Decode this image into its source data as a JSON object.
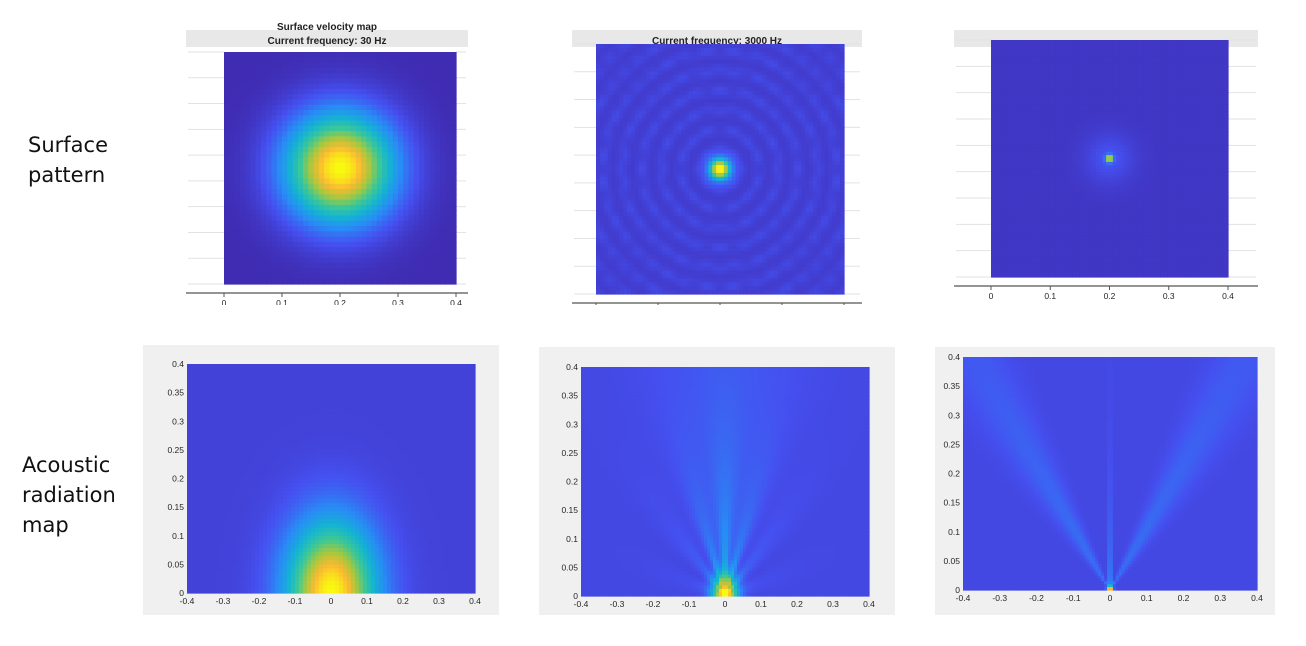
{
  "row_labels": {
    "surface": [
      "Surface",
      "pattern"
    ],
    "acoustic": [
      "Acoustic",
      "radiation",
      "map"
    ]
  },
  "chart_data": [
    {
      "type": "heatmap",
      "row": "Surface pattern",
      "title": "Surface velocity map",
      "subtitle": "Current frequency: 30 Hz",
      "x_ticks": [
        "0",
        "0.1",
        "0.2",
        "0.3",
        "0.4"
      ],
      "xlim": [
        0,
        0.4
      ],
      "pattern": "single broad maximum at center (0.2, 0.2), decaying to edges",
      "peak": {
        "x": 0.2,
        "y": 0.2
      }
    },
    {
      "type": "heatmap",
      "row": "Surface pattern",
      "title": "",
      "subtitle": "Current frequency: 3000 Hz",
      "x_ticks": [],
      "pattern": "small central maximum with weak concentric ripples",
      "peak": {
        "x": 0.2,
        "y": 0.2
      }
    },
    {
      "type": "heatmap",
      "row": "Surface pattern",
      "title": "",
      "subtitle": "",
      "x_ticks": [
        "0",
        "0.1",
        "0.2",
        "0.3",
        "0.4"
      ],
      "xlim": [
        0,
        0.4
      ],
      "pattern": "very small central spot, near-uniform elsewhere",
      "peak": {
        "x": 0.2,
        "y": 0.2
      }
    },
    {
      "type": "heatmap",
      "row": "Acoustic radiation map",
      "x_ticks": [
        "-0.4",
        "-0.3",
        "-0.2",
        "-0.1",
        "0",
        "0.1",
        "0.2",
        "0.3",
        "0.4"
      ],
      "y_ticks": [
        "0",
        "0.05",
        "0.1",
        "0.15",
        "0.2",
        "0.25",
        "0.3",
        "0.35",
        "0.4"
      ],
      "xlim": [
        -0.4,
        0.4
      ],
      "ylim": [
        0,
        0.4
      ],
      "pattern": "broad hemispherical lobe centered at x=0 near y=0"
    },
    {
      "type": "heatmap",
      "row": "Acoustic radiation map",
      "x_ticks": [
        "-0.4",
        "-0.3",
        "-0.2",
        "-0.1",
        "0",
        "0.1",
        "0.2",
        "0.3",
        "0.4"
      ],
      "y_ticks": [
        "0",
        "0.05",
        "0.1",
        "0.15",
        "0.2",
        "0.25",
        "0.3",
        "0.35",
        "0.4"
      ],
      "xlim": [
        -0.4,
        0.4
      ],
      "ylim": [
        0,
        0.4
      ],
      "pattern": "narrow main lobe at x=0 with side lobes"
    },
    {
      "type": "heatmap",
      "row": "Acoustic radiation map",
      "x_ticks": [
        "-0.4",
        "-0.3",
        "-0.2",
        "-0.1",
        "0",
        "0.1",
        "0.2",
        "0.3",
        "0.4"
      ],
      "y_ticks": [
        "0",
        "0.05",
        "0.1",
        "0.15",
        "0.2",
        "0.25",
        "0.3",
        "0.35",
        "0.4"
      ],
      "xlim": [
        -0.4,
        0.4
      ],
      "ylim": [
        0,
        0.4
      ],
      "pattern": "V-shaped beams from the source at x=0, y=0"
    }
  ],
  "colors": {
    "parula_low": "#3e26a8",
    "parula_mid": "#2db59e",
    "parula_high": "#f9fb0e",
    "axes_bg": "#f0f0f0"
  }
}
